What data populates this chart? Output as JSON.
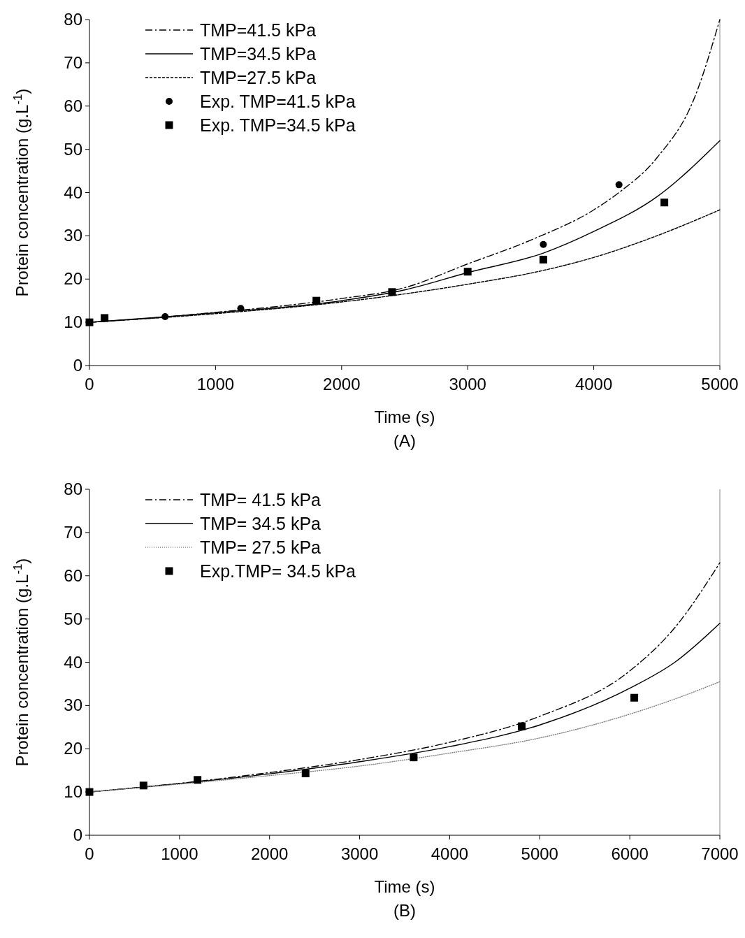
{
  "chart_data": [
    {
      "type": "line",
      "xlabel": "Time (s)",
      "ylabel": "Protein concentration (g.L$^{-1}$)",
      "annotations": [
        "(A)"
      ],
      "xlim": [
        0,
        5000
      ],
      "xticks": [
        0,
        1000,
        2000,
        3000,
        4000,
        5000
      ],
      "ylim": [
        0,
        80
      ],
      "yticks": [
        0,
        10,
        20,
        30,
        40,
        50,
        60,
        70,
        80
      ],
      "legend": "top left",
      "grid": false,
      "series": [
        {
          "name": "TMP=41.5 kPa",
          "type": "line",
          "line_style": "dashdot",
          "color": "#000000",
          "x": [
            0,
            500,
            1000,
            1500,
            2000,
            2500,
            3000,
            3500,
            4000,
            4200,
            4500,
            4800,
            5000
          ],
          "values": [
            10,
            11,
            12.3,
            13.7,
            15.5,
            18,
            23.5,
            29,
            36,
            40,
            48,
            62,
            80
          ]
        },
        {
          "name": "TMP=34.5 kPa",
          "type": "line",
          "line_style": "solid",
          "color": "#000000",
          "x": [
            0,
            1000,
            2000,
            2500,
            3000,
            3600,
            4000,
            4500,
            5000
          ],
          "values": [
            10,
            12.2,
            15,
            17.5,
            21.5,
            26,
            31,
            39,
            52
          ]
        },
        {
          "name": "TMP=27.5 kPa",
          "type": "line",
          "line_style": "dashed",
          "color": "#000000",
          "x": [
            0,
            1000,
            2000,
            3000,
            3600,
            4000,
            4500,
            5000
          ],
          "values": [
            10,
            12,
            14.7,
            18.8,
            22,
            25,
            30,
            36
          ]
        },
        {
          "name": "Exp. TMP=41.5 kPa",
          "type": "scatter",
          "marker": "circle",
          "color": "#000000",
          "x": [
            600,
            1200,
            1800,
            3600,
            4200
          ],
          "values": [
            11.3,
            13.2,
            null,
            28,
            41.8
          ]
        },
        {
          "name": "Exp. TMP=34.5 kPa",
          "type": "scatter",
          "marker": "square",
          "color": "#000000",
          "x": [
            0,
            120,
            1800,
            2400,
            3000,
            3600,
            4560
          ],
          "values": [
            10,
            11,
            15,
            17,
            21.7,
            24.5,
            37.7
          ]
        }
      ]
    },
    {
      "type": "line",
      "xlabel": "Time (s)",
      "ylabel": "Protein concentration (g.L$^{-1}$)",
      "annotations": [
        "(B)"
      ],
      "xlim": [
        0,
        7000
      ],
      "xticks": [
        0,
        1000,
        2000,
        3000,
        4000,
        5000,
        6000,
        7000
      ],
      "ylim": [
        0,
        80
      ],
      "yticks": [
        0,
        10,
        20,
        30,
        40,
        50,
        60,
        70,
        80
      ],
      "legend": "top left",
      "grid": false,
      "series": [
        {
          "name": "TMP= 41.5 kPa",
          "type": "line",
          "line_style": "dashdot",
          "color": "#000000",
          "x": [
            0,
            1000,
            2000,
            3000,
            4000,
            5000,
            6000,
            6500,
            7000
          ],
          "values": [
            10,
            12,
            14.5,
            17.5,
            21.5,
            27.5,
            38,
            48,
            63
          ]
        },
        {
          "name": "TMP= 34.5 kPa",
          "type": "line",
          "line_style": "solid",
          "color": "#000000",
          "x": [
            0,
            2000,
            3000,
            4000,
            5000,
            6000,
            6500,
            7000
          ],
          "values": [
            10,
            14.2,
            17,
            20.5,
            25.5,
            34,
            40,
            49
          ]
        },
        {
          "name": "TMP= 27.5 kPa",
          "type": "line",
          "line_style": "dotted",
          "color": "#808080",
          "x": [
            0,
            2000,
            3000,
            4000,
            5000,
            6000,
            6500,
            7000
          ],
          "values": [
            10,
            13.8,
            16,
            19,
            22.5,
            28,
            31.5,
            35.5
          ]
        },
        {
          "name": "Exp.TMP= 34.5 kPa",
          "type": "scatter",
          "marker": "square",
          "color": "#000000",
          "x": [
            0,
            600,
            1200,
            2400,
            3600,
            4800,
            6050
          ],
          "values": [
            10,
            11.5,
            12.8,
            14.3,
            18,
            25.2,
            31.8
          ]
        }
      ]
    }
  ]
}
